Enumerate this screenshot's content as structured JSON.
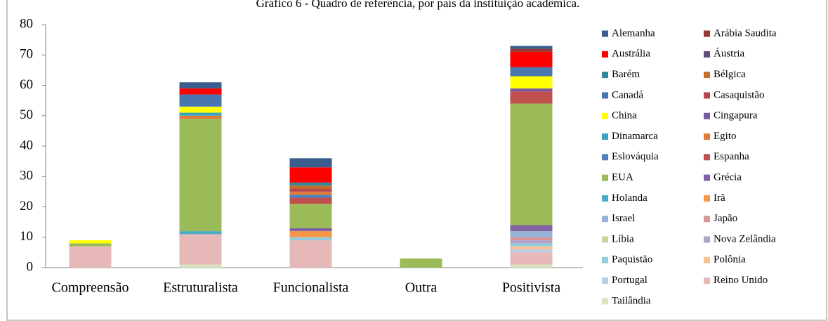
{
  "chart_data": {
    "type": "stacked_bar",
    "title": "Gráfico 6 - Quadro de referência, por país da instituição acadêmica.",
    "categories": [
      "Compreensão",
      "Estruturalista",
      "Funcionalista",
      "Outra",
      "Positivista"
    ],
    "ylim": [
      0,
      80
    ],
    "yticks": [
      0,
      10,
      20,
      30,
      40,
      50,
      60,
      70,
      80
    ],
    "grid": false,
    "legend": "right",
    "series": [
      {
        "name": "Alemanha",
        "color": "#3a5f8f",
        "values": [
          0,
          2,
          3,
          0,
          1
        ]
      },
      {
        "name": "Arábia Saudita",
        "color": "#953735",
        "values": [
          0,
          0,
          0,
          0,
          1
        ]
      },
      {
        "name": "Austrália",
        "color": "#ff0000",
        "values": [
          0,
          2,
          5,
          0,
          5
        ]
      },
      {
        "name": "Áustria",
        "color": "#604a7b",
        "values": [
          0,
          0,
          0,
          0,
          0
        ]
      },
      {
        "name": "Barém",
        "color": "#31859c",
        "values": [
          0,
          0,
          1,
          0,
          0
        ]
      },
      {
        "name": "Bélgica",
        "color": "#c0702a",
        "values": [
          0,
          0,
          1,
          0,
          0
        ]
      },
      {
        "name": "Canadá",
        "color": "#4a76b0",
        "values": [
          0,
          4,
          0,
          0,
          3
        ]
      },
      {
        "name": "Casaquistão",
        "color": "#b6484a",
        "values": [
          0,
          0,
          1,
          0,
          0
        ]
      },
      {
        "name": "China",
        "color": "#ffff00",
        "values": [
          1,
          2,
          0,
          0,
          4
        ]
      },
      {
        "name": "Cingapura",
        "color": "#7a5c9e",
        "values": [
          0,
          0,
          0,
          0,
          1
        ]
      },
      {
        "name": "Dinamarca",
        "color": "#3aa3bd",
        "values": [
          0,
          1,
          0,
          0,
          0
        ]
      },
      {
        "name": "Egito",
        "color": "#e07b39",
        "values": [
          0,
          1,
          1,
          0,
          0
        ]
      },
      {
        "name": "Eslováquia",
        "color": "#4f81bd",
        "values": [
          0,
          0,
          1,
          0,
          0
        ]
      },
      {
        "name": "Espanha",
        "color": "#c0504d",
        "values": [
          0,
          0,
          2,
          0,
          4
        ]
      },
      {
        "name": "EUA",
        "color": "#9bbb59",
        "values": [
          1,
          37,
          8,
          3,
          40
        ]
      },
      {
        "name": "Grécia",
        "color": "#8064a2",
        "values": [
          0,
          0,
          1,
          0,
          2
        ]
      },
      {
        "name": "Holanda",
        "color": "#4bacc6",
        "values": [
          0,
          1,
          0,
          0,
          0
        ]
      },
      {
        "name": "Irã",
        "color": "#f79646",
        "values": [
          0,
          0,
          2,
          0,
          0
        ]
      },
      {
        "name": "Israel",
        "color": "#95b3d7",
        "values": [
          0,
          0,
          0,
          0,
          2
        ]
      },
      {
        "name": "Japão",
        "color": "#d99694",
        "values": [
          0,
          0,
          0,
          0,
          1
        ]
      },
      {
        "name": "Líbia",
        "color": "#c3d69b",
        "values": [
          0,
          0,
          0,
          0,
          0
        ]
      },
      {
        "name": "Nova Zelândia",
        "color": "#b3a2c7",
        "values": [
          0,
          0,
          0,
          0,
          1
        ]
      },
      {
        "name": "Paquistão",
        "color": "#93cddd",
        "values": [
          0,
          0,
          1,
          0,
          1
        ]
      },
      {
        "name": "Polônia",
        "color": "#fac090",
        "values": [
          0,
          0,
          0,
          0,
          1
        ]
      },
      {
        "name": "Portugal",
        "color": "#b9cde5",
        "values": [
          0,
          0,
          0,
          0,
          1
        ]
      },
      {
        "name": "Reino Unido",
        "color": "#e6b9b8",
        "values": [
          7,
          10,
          9,
          0,
          4
        ]
      },
      {
        "name": "Tailândia",
        "color": "#d7e4bd",
        "values": [
          0,
          1,
          0,
          0,
          1
        ]
      }
    ]
  }
}
